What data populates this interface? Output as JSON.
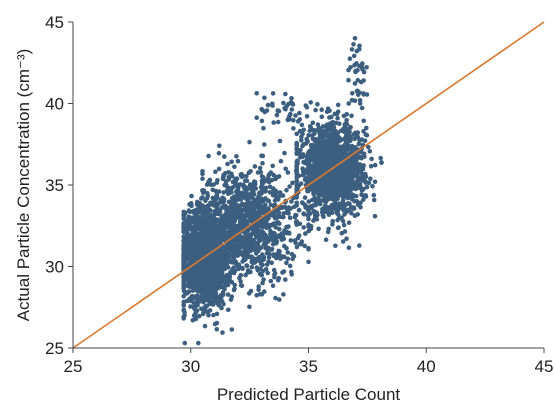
{
  "chart_data": {
    "type": "scatter",
    "xlabel": "Predicted Particle Count",
    "ylabel": "Actual Particle Concentration (cm⁻³)",
    "xlim": [
      25,
      45
    ],
    "ylim": [
      25,
      45
    ],
    "xticks": [
      "25",
      "30",
      "35",
      "40",
      "45"
    ],
    "yticks": [
      "25",
      "30",
      "35",
      "40",
      "45"
    ],
    "grid": false,
    "legend": "none",
    "colors": {
      "points": "#3d5f7f",
      "reference_line": "#d9792f",
      "axis": "#444444"
    },
    "reference_line": {
      "name": "",
      "points": [
        [
          25,
          25
        ],
        [
          45,
          45
        ]
      ]
    },
    "series": [
      {
        "clusters": [
          {
            "x_mean": 30.6,
            "x_sd": 0.55,
            "y_mean": 30.6,
            "y_sd": 1.55,
            "count": 1500,
            "x_min": 29.7,
            "x_max": 32.5,
            "y_min": 25.3,
            "y_max": 35.0
          },
          {
            "x_mean": 32.4,
            "x_sd": 1.05,
            "y_mean": 32.6,
            "y_sd": 1.75,
            "count": 1100,
            "x_min": 30.5,
            "x_max": 35.0,
            "y_min": 27.0,
            "y_max": 38.5
          },
          {
            "x_mean": 36.0,
            "x_sd": 0.7,
            "y_mean": 35.9,
            "y_sd": 1.35,
            "count": 1400,
            "x_min": 34.5,
            "x_max": 38.1,
            "y_min": 30.3,
            "y_max": 41.5
          },
          {
            "x_mean": 37.1,
            "x_sd": 0.22,
            "y_mean": 41.8,
            "y_sd": 1.0,
            "count": 40,
            "x_min": 36.7,
            "x_max": 37.5,
            "y_min": 40.0,
            "y_max": 44.0
          },
          {
            "x_mean": 34.0,
            "x_sd": 0.7,
            "y_mean": 39.6,
            "y_sd": 0.7,
            "count": 45,
            "x_min": 32.8,
            "x_max": 35.3,
            "y_min": 38.3,
            "y_max": 41.3
          }
        ]
      }
    ]
  }
}
